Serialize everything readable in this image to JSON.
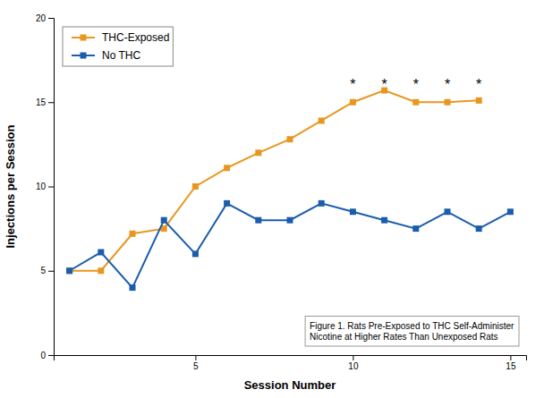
{
  "chart_data": {
    "type": "line",
    "xlabel": "Session Number",
    "ylabel": "Injections per Session",
    "x": [
      1,
      2,
      3,
      4,
      5,
      6,
      7,
      8,
      9,
      10,
      11,
      12,
      13,
      14,
      15
    ],
    "series": [
      {
        "name": "THC-Exposed",
        "color": "#E8971E",
        "marker": "square",
        "values": [
          5.0,
          5.0,
          7.2,
          7.5,
          10.0,
          11.1,
          12.0,
          12.8,
          13.9,
          15.0,
          15.7,
          15.0,
          15.0,
          15.1,
          null
        ]
      },
      {
        "name": "No THC",
        "color": "#1A5DAD",
        "marker": "square",
        "values": [
          5.0,
          6.1,
          4.0,
          8.0,
          6.0,
          9.0,
          8.0,
          8.0,
          9.0,
          8.5,
          8.0,
          7.5,
          8.5,
          7.5,
          8.5
        ]
      }
    ],
    "xlim": [
      0.5,
      15.5
    ],
    "xticks": [
      5,
      10,
      15
    ],
    "ylim": [
      0,
      20
    ],
    "yticks": [
      0,
      5,
      10,
      15,
      20
    ],
    "grid": false,
    "legend": "upper left",
    "annotations": [
      {
        "text": "*",
        "x": 10,
        "y": 16.2
      },
      {
        "text": "*",
        "x": 11,
        "y": 16.2
      },
      {
        "text": "*",
        "x": 12,
        "y": 16.2
      },
      {
        "text": "*",
        "x": 13,
        "y": 16.2
      },
      {
        "text": "*",
        "x": 14,
        "y": 16.2
      },
      {
        "text": "Figure 1. Rats Pre-Exposed to THC Self-Administer\nNicotine at Higher Rates Than Unexposed Rats"
      }
    ]
  }
}
